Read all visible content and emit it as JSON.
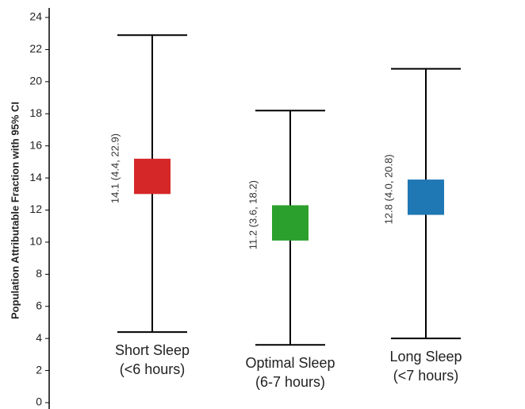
{
  "chart_data": {
    "type": "errorbar",
    "y_label": "Population Attributable Fraction with 95% CI",
    "categories": [
      [
        "Short Sleep",
        "(<6 hours)"
      ],
      [
        "Optimal Sleep",
        "(6-7 hours)"
      ],
      [
        "Long Sleep",
        "(<7 hours)"
      ]
    ],
    "values": [
      14.1,
      11.2,
      12.8
    ],
    "lower": [
      4.4,
      3.6,
      4.0
    ],
    "upper": [
      22.9,
      18.2,
      20.8
    ],
    "value_labels": [
      "14.1 (4.4, 22.9)",
      "11.2 (3.6, 18.2)",
      "12.8 (4.0, 20.8)"
    ],
    "colors": [
      "#d62728",
      "#2ca02c",
      "#1f77b4"
    ],
    "ylim": [
      0,
      24
    ],
    "yticks": [
      0,
      2,
      4,
      6,
      8,
      10,
      12,
      14,
      16,
      18,
      20,
      22,
      24
    ]
  }
}
